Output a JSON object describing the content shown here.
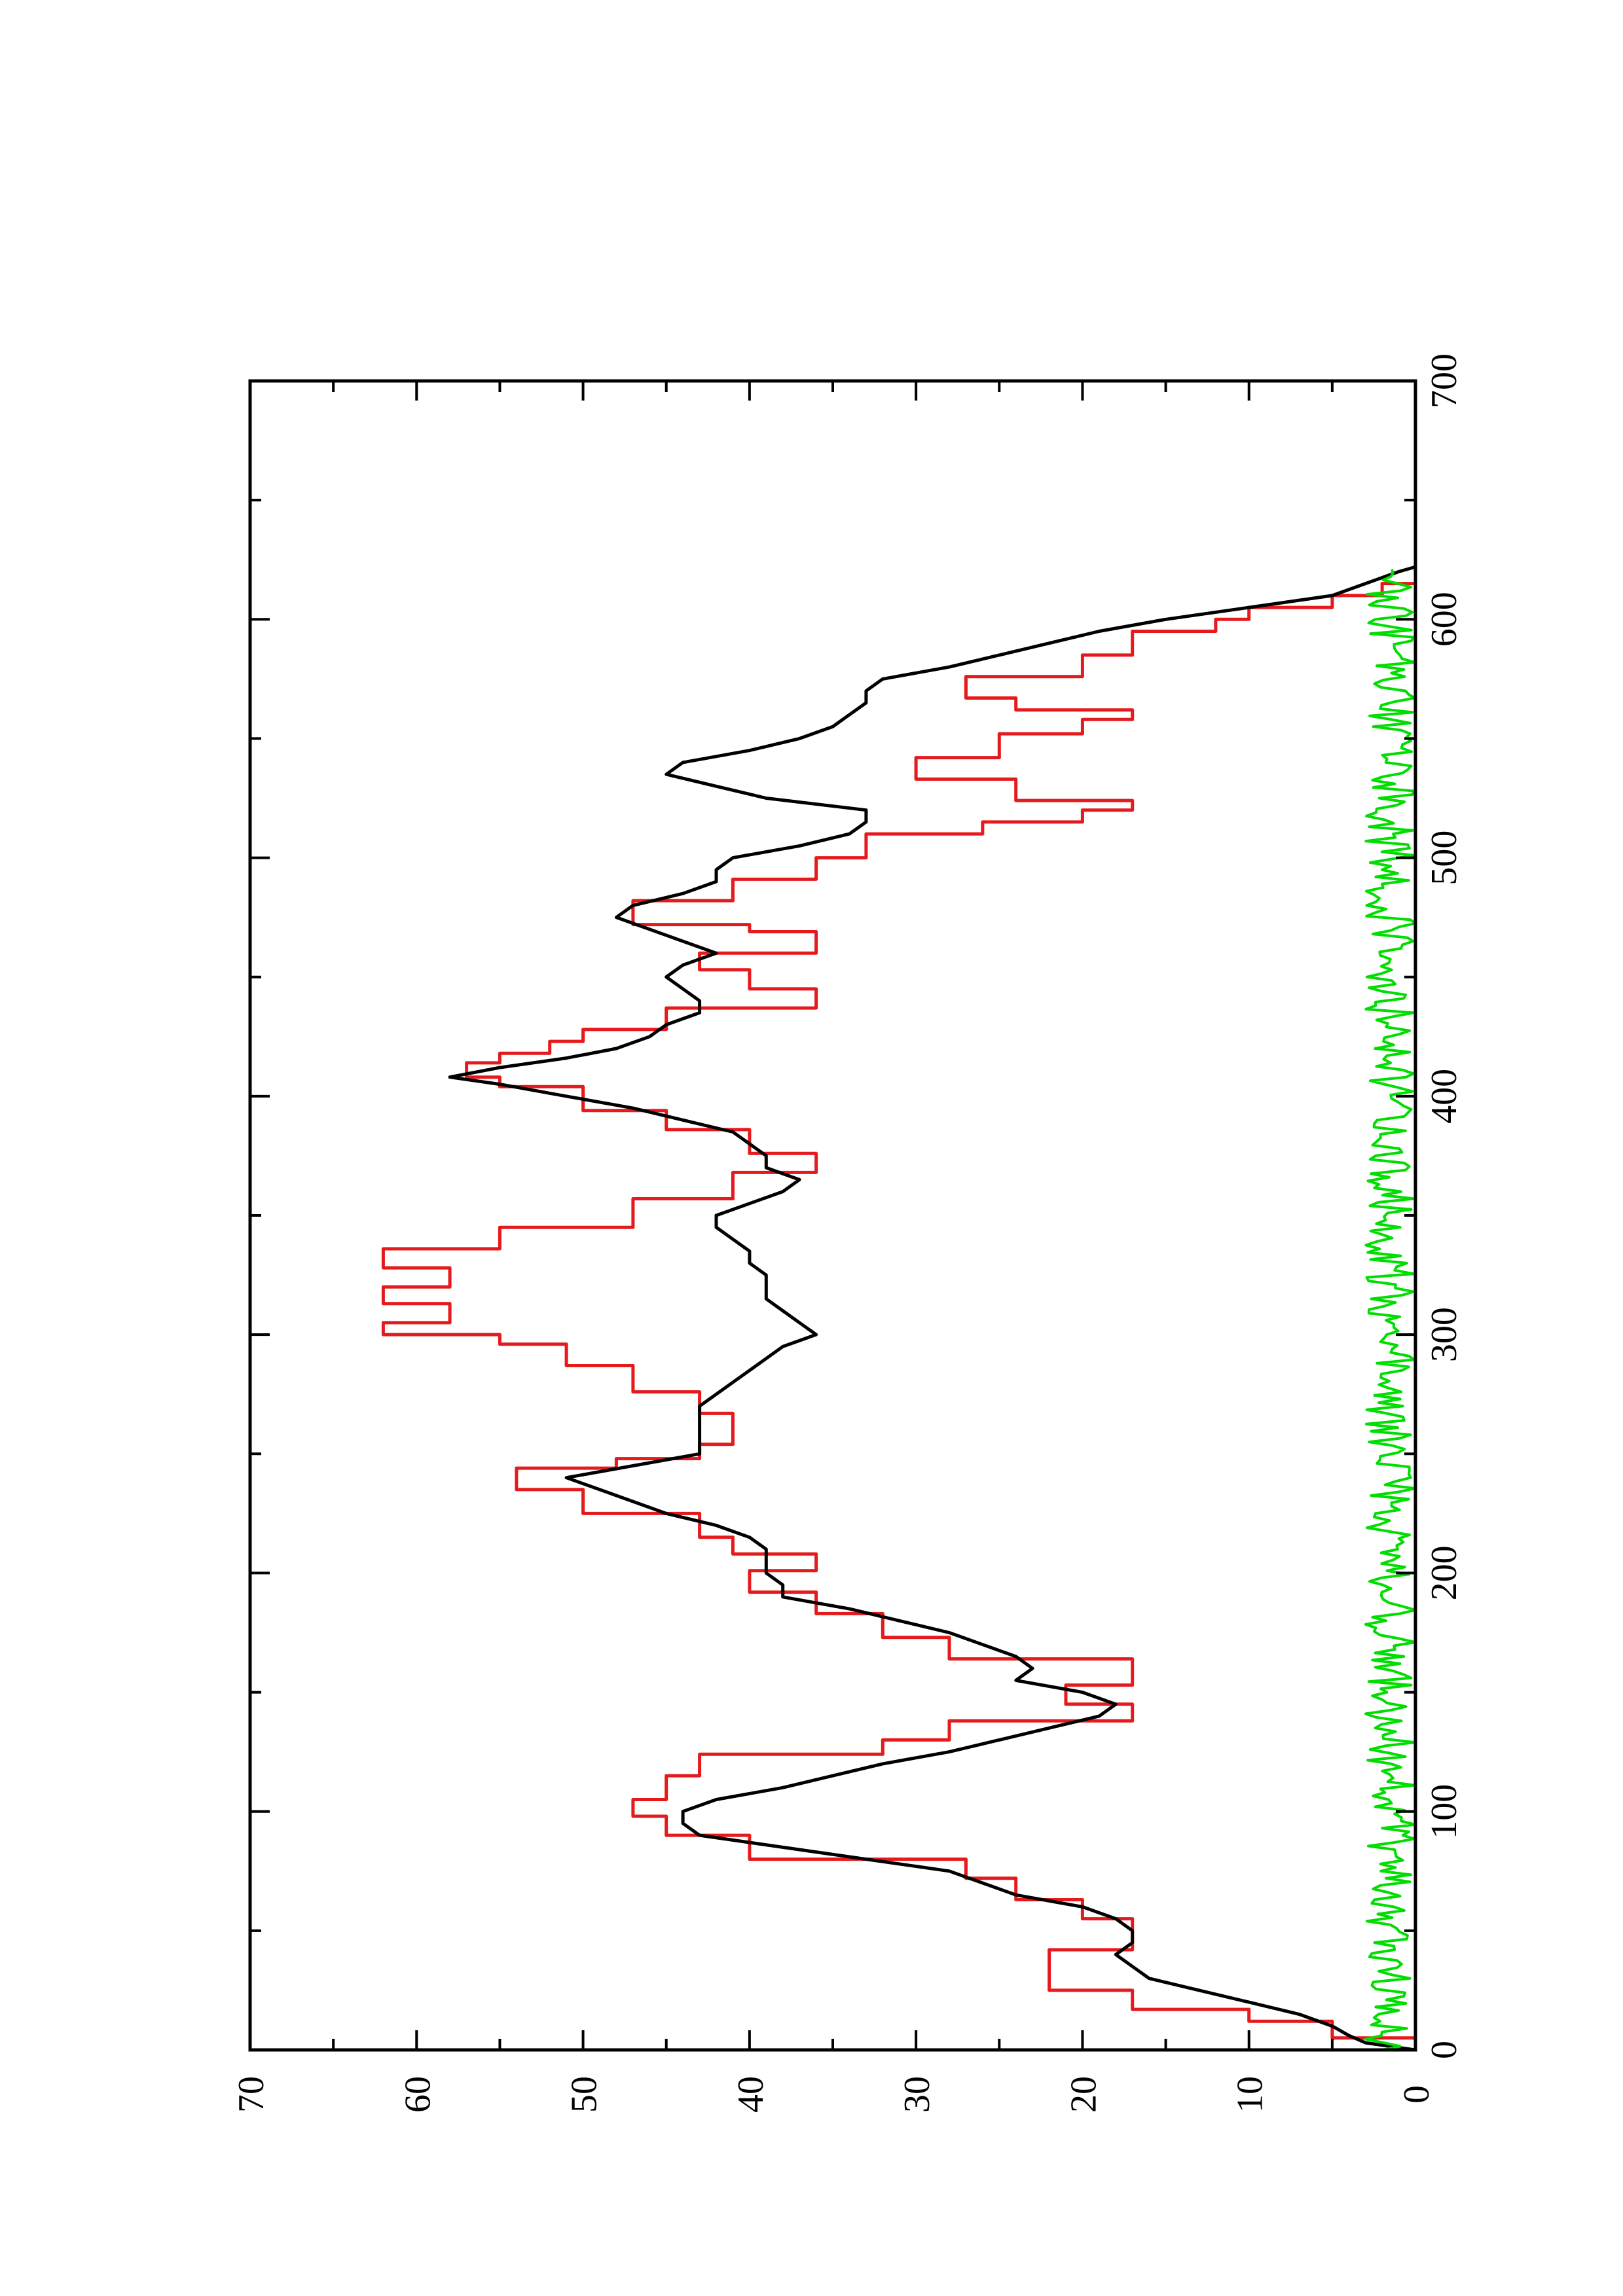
{
  "chart_data": {
    "type": "line",
    "orientation": "rotated-90-clockwise",
    "title": "",
    "xlabel": "",
    "ylabel": "",
    "xlim": [
      0,
      700
    ],
    "ylim": [
      0,
      70
    ],
    "grid": false,
    "legend": "none",
    "x_ticks": [
      "0",
      "100",
      "200",
      "300",
      "400",
      "500",
      "600",
      "700"
    ],
    "y_ticks": [
      "0",
      "10",
      "20",
      "30",
      "40",
      "50",
      "60",
      "70"
    ],
    "series": [
      {
        "color": "#e41a1c",
        "style": "step",
        "points": [
          [
            0,
            0
          ],
          [
            5,
            5
          ],
          [
            12,
            10
          ],
          [
            17,
            17
          ],
          [
            25,
            22
          ],
          [
            37,
            22
          ],
          [
            42,
            17
          ],
          [
            50,
            17
          ],
          [
            55,
            20
          ],
          [
            60,
            20
          ],
          [
            63,
            24
          ],
          [
            68,
            24
          ],
          [
            72,
            27
          ],
          [
            76,
            27
          ],
          [
            80,
            40
          ],
          [
            85,
            40
          ],
          [
            90,
            45
          ],
          [
            95,
            45
          ],
          [
            98,
            47
          ],
          [
            102,
            47
          ],
          [
            105,
            45
          ],
          [
            110,
            45
          ],
          [
            115,
            43
          ],
          [
            120,
            43
          ],
          [
            124,
            32
          ],
          [
            127,
            32
          ],
          [
            130,
            28
          ],
          [
            134,
            28
          ],
          [
            138,
            17
          ],
          [
            142,
            17
          ],
          [
            145,
            21
          ],
          [
            150,
            21
          ],
          [
            153,
            17
          ],
          [
            160,
            17
          ],
          [
            164,
            28
          ],
          [
            169,
            28
          ],
          [
            173,
            32
          ],
          [
            178,
            32
          ],
          [
            183,
            36
          ],
          [
            188,
            36
          ],
          [
            192,
            40
          ],
          [
            197,
            40
          ],
          [
            201,
            36
          ],
          [
            205,
            36
          ],
          [
            208,
            41
          ],
          [
            213,
            41
          ],
          [
            215,
            43
          ],
          [
            220,
            43
          ],
          [
            225,
            50
          ],
          [
            230,
            50
          ],
          [
            235,
            54
          ],
          [
            240,
            54
          ],
          [
            244,
            48
          ],
          [
            248,
            43
          ],
          [
            254,
            41
          ],
          [
            262,
            41
          ],
          [
            267,
            43
          ],
          [
            272,
            43
          ],
          [
            276,
            47
          ],
          [
            282,
            47
          ],
          [
            287,
            51
          ],
          [
            291,
            51
          ],
          [
            296,
            55
          ],
          [
            300,
            62
          ],
          [
            305,
            58
          ],
          [
            310,
            58
          ],
          [
            313,
            62
          ],
          [
            318,
            62
          ],
          [
            320,
            58
          ],
          [
            325,
            58
          ],
          [
            328,
            62
          ],
          [
            333,
            62
          ],
          [
            336,
            55
          ],
          [
            340,
            55
          ],
          [
            345,
            47
          ],
          [
            350,
            47
          ],
          [
            357,
            41
          ],
          [
            362,
            41
          ],
          [
            368,
            36
          ],
          [
            372,
            36
          ],
          [
            376,
            40
          ],
          [
            380,
            40
          ],
          [
            386,
            45
          ],
          [
            390,
            45
          ],
          [
            394,
            50
          ],
          [
            398,
            50
          ],
          [
            404,
            55
          ],
          [
            408,
            57
          ],
          [
            414,
            55
          ],
          [
            418,
            52
          ],
          [
            423,
            50
          ],
          [
            428,
            45
          ],
          [
            432,
            45
          ],
          [
            437,
            36
          ],
          [
            441,
            36
          ],
          [
            445,
            40
          ],
          [
            450,
            40
          ],
          [
            453,
            43
          ],
          [
            458,
            43
          ],
          [
            460,
            36
          ],
          [
            465,
            36
          ],
          [
            469,
            40
          ],
          [
            472,
            47
          ],
          [
            477,
            47
          ],
          [
            482,
            41
          ],
          [
            487,
            41
          ],
          [
            491,
            36
          ],
          [
            496,
            36
          ],
          [
            500,
            33
          ],
          [
            505,
            33
          ],
          [
            510,
            26
          ],
          [
            515,
            20
          ],
          [
            520,
            17
          ],
          [
            524,
            24
          ],
          [
            529,
            24
          ],
          [
            533,
            30
          ],
          [
            538,
            30
          ],
          [
            542,
            25
          ],
          [
            548,
            25
          ],
          [
            552,
            20
          ],
          [
            558,
            17
          ],
          [
            562,
            24
          ],
          [
            567,
            27
          ],
          [
            572,
            27
          ],
          [
            576,
            20
          ],
          [
            580,
            20
          ],
          [
            585,
            17
          ],
          [
            590,
            17
          ],
          [
            595,
            12
          ],
          [
            600,
            10
          ],
          [
            605,
            5
          ],
          [
            610,
            2
          ],
          [
            615,
            0
          ]
        ]
      },
      {
        "color": "#000000",
        "style": "line",
        "points": [
          [
            0,
            0
          ],
          [
            3,
            3
          ],
          [
            6,
            4
          ],
          [
            10,
            5
          ],
          [
            15,
            7
          ],
          [
            20,
            10
          ],
          [
            25,
            13
          ],
          [
            30,
            16
          ],
          [
            35,
            17
          ],
          [
            40,
            18
          ],
          [
            45,
            17
          ],
          [
            50,
            17
          ],
          [
            55,
            18
          ],
          [
            60,
            20
          ],
          [
            65,
            24
          ],
          [
            70,
            26
          ],
          [
            75,
            28
          ],
          [
            80,
            33
          ],
          [
            85,
            38
          ],
          [
            90,
            43
          ],
          [
            95,
            44
          ],
          [
            100,
            44
          ],
          [
            105,
            42
          ],
          [
            110,
            38
          ],
          [
            115,
            35
          ],
          [
            120,
            32
          ],
          [
            125,
            28
          ],
          [
            130,
            25
          ],
          [
            135,
            22
          ],
          [
            140,
            19
          ],
          [
            145,
            18
          ],
          [
            150,
            20
          ],
          [
            155,
            24
          ],
          [
            160,
            23
          ],
          [
            165,
            24
          ],
          [
            170,
            26
          ],
          [
            175,
            28
          ],
          [
            180,
            31
          ],
          [
            185,
            34
          ],
          [
            190,
            38
          ],
          [
            195,
            38
          ],
          [
            200,
            39
          ],
          [
            205,
            39
          ],
          [
            210,
            39
          ],
          [
            215,
            40
          ],
          [
            220,
            42
          ],
          [
            225,
            45
          ],
          [
            230,
            47
          ],
          [
            235,
            49
          ],
          [
            240,
            51
          ],
          [
            245,
            47
          ],
          [
            250,
            43
          ],
          [
            255,
            43
          ],
          [
            260,
            43
          ],
          [
            265,
            43
          ],
          [
            270,
            43
          ],
          [
            275,
            42
          ],
          [
            280,
            41
          ],
          [
            285,
            40
          ],
          [
            290,
            39
          ],
          [
            295,
            38
          ],
          [
            300,
            36
          ],
          [
            305,
            37
          ],
          [
            310,
            38
          ],
          [
            315,
            39
          ],
          [
            320,
            39
          ],
          [
            325,
            39
          ],
          [
            330,
            40
          ],
          [
            335,
            40
          ],
          [
            340,
            41
          ],
          [
            345,
            42
          ],
          [
            350,
            42
          ],
          [
            355,
            40
          ],
          [
            360,
            38
          ],
          [
            365,
            37
          ],
          [
            370,
            39
          ],
          [
            375,
            39
          ],
          [
            380,
            40
          ],
          [
            385,
            41
          ],
          [
            390,
            44
          ],
          [
            395,
            47
          ],
          [
            400,
            51
          ],
          [
            405,
            55
          ],
          [
            408,
            58
          ],
          [
            412,
            55
          ],
          [
            416,
            51
          ],
          [
            420,
            48
          ],
          [
            425,
            46
          ],
          [
            430,
            45
          ],
          [
            435,
            43
          ],
          [
            440,
            43
          ],
          [
            445,
            44
          ],
          [
            450,
            45
          ],
          [
            455,
            44
          ],
          [
            460,
            42
          ],
          [
            465,
            44
          ],
          [
            470,
            46
          ],
          [
            475,
            48
          ],
          [
            480,
            47
          ],
          [
            485,
            44
          ],
          [
            490,
            42
          ],
          [
            495,
            42
          ],
          [
            500,
            41
          ],
          [
            505,
            37
          ],
          [
            510,
            34
          ],
          [
            515,
            33
          ],
          [
            520,
            33
          ],
          [
            525,
            39
          ],
          [
            530,
            42
          ],
          [
            535,
            45
          ],
          [
            540,
            44
          ],
          [
            545,
            40
          ],
          [
            550,
            37
          ],
          [
            555,
            35
          ],
          [
            560,
            34
          ],
          [
            565,
            33
          ],
          [
            570,
            33
          ],
          [
            575,
            32
          ],
          [
            580,
            28
          ],
          [
            585,
            25
          ],
          [
            590,
            22
          ],
          [
            595,
            19
          ],
          [
            600,
            15
          ],
          [
            605,
            10
          ],
          [
            610,
            5
          ],
          [
            615,
            3
          ],
          [
            620,
            1
          ],
          [
            622,
            0
          ]
        ]
      },
      {
        "color": "#00dd00",
        "style": "line",
        "noise_min": 0,
        "noise_max": 3,
        "x_start": 0,
        "x_end": 622
      }
    ]
  }
}
